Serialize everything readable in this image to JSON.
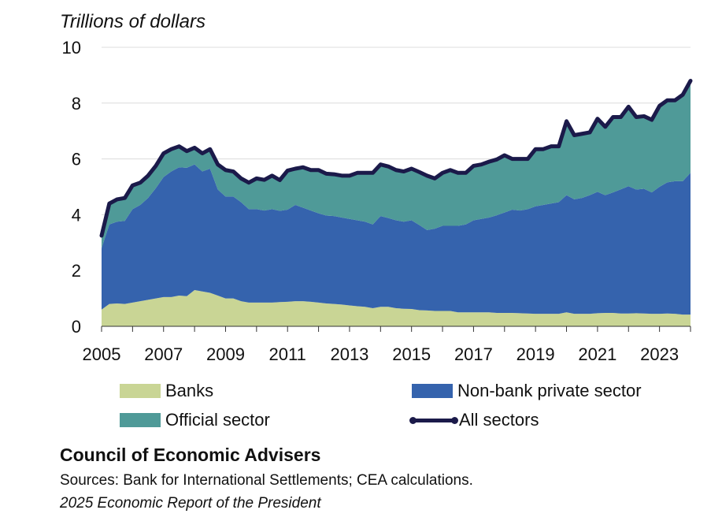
{
  "chart_data": {
    "type": "area",
    "stacked": true,
    "unit_label": "Trillions of dollars",
    "ylim": [
      0,
      10
    ],
    "yticks": [
      "0",
      "2",
      "4",
      "6",
      "8",
      "10"
    ],
    "xlim": [
      2005.0,
      2024.0
    ],
    "xticks": [
      "2005",
      "2007",
      "2009",
      "2011",
      "2013",
      "2015",
      "2017",
      "2019",
      "2021",
      "2023"
    ],
    "x": [
      2005.0,
      2005.25,
      2005.5,
      2005.75,
      2006.0,
      2006.25,
      2006.5,
      2006.75,
      2007.0,
      2007.25,
      2007.5,
      2007.75,
      2008.0,
      2008.25,
      2008.5,
      2008.75,
      2009.0,
      2009.25,
      2009.5,
      2009.75,
      2010.0,
      2010.25,
      2010.5,
      2010.75,
      2011.0,
      2011.25,
      2011.5,
      2011.75,
      2012.0,
      2012.25,
      2012.5,
      2012.75,
      2013.0,
      2013.25,
      2013.5,
      2013.75,
      2014.0,
      2014.25,
      2014.5,
      2014.75,
      2015.0,
      2015.25,
      2015.5,
      2015.75,
      2016.0,
      2016.25,
      2016.5,
      2016.75,
      2017.0,
      2017.25,
      2017.5,
      2017.75,
      2018.0,
      2018.25,
      2018.5,
      2018.75,
      2019.0,
      2019.25,
      2019.5,
      2019.75,
      2020.0,
      2020.25,
      2020.5,
      2020.75,
      2021.0,
      2021.25,
      2021.5,
      2021.75,
      2022.0,
      2022.25,
      2022.5,
      2022.75,
      2023.0,
      2023.25,
      2023.5,
      2023.75,
      2024.0
    ],
    "series": [
      {
        "name": "Banks",
        "kind": "area",
        "color": "#c9d595",
        "values": [
          0.6,
          0.8,
          0.82,
          0.8,
          0.85,
          0.9,
          0.95,
          1.0,
          1.05,
          1.05,
          1.1,
          1.08,
          1.3,
          1.25,
          1.2,
          1.1,
          1.0,
          1.0,
          0.9,
          0.85,
          0.85,
          0.85,
          0.85,
          0.87,
          0.88,
          0.9,
          0.9,
          0.88,
          0.85,
          0.82,
          0.8,
          0.78,
          0.75,
          0.72,
          0.7,
          0.65,
          0.7,
          0.7,
          0.65,
          0.63,
          0.62,
          0.58,
          0.57,
          0.55,
          0.55,
          0.55,
          0.5,
          0.5,
          0.5,
          0.5,
          0.5,
          0.48,
          0.48,
          0.48,
          0.47,
          0.46,
          0.45,
          0.45,
          0.45,
          0.45,
          0.5,
          0.45,
          0.45,
          0.45,
          0.47,
          0.48,
          0.48,
          0.46,
          0.46,
          0.47,
          0.46,
          0.45,
          0.45,
          0.46,
          0.45,
          0.42,
          0.42
        ]
      },
      {
        "name": "Non-bank private sector",
        "kind": "area",
        "color": "#3563ad",
        "values": [
          2.2,
          2.85,
          2.93,
          2.98,
          3.35,
          3.45,
          3.65,
          3.95,
          4.3,
          4.5,
          4.6,
          4.6,
          4.5,
          4.3,
          4.45,
          3.8,
          3.65,
          3.65,
          3.55,
          3.35,
          3.35,
          3.3,
          3.35,
          3.27,
          3.3,
          3.45,
          3.35,
          3.27,
          3.2,
          3.15,
          3.15,
          3.12,
          3.1,
          3.08,
          3.05,
          3.0,
          3.25,
          3.18,
          3.15,
          3.12,
          3.18,
          3.05,
          2.88,
          2.95,
          3.05,
          3.05,
          3.1,
          3.15,
          3.3,
          3.35,
          3.4,
          3.5,
          3.6,
          3.7,
          3.68,
          3.74,
          3.85,
          3.9,
          3.95,
          4.0,
          4.2,
          4.1,
          4.15,
          4.25,
          4.35,
          4.22,
          4.32,
          4.45,
          4.56,
          4.43,
          4.47,
          4.35,
          4.55,
          4.7,
          4.75,
          4.78,
          5.08
        ]
      },
      {
        "name": "Official sector",
        "kind": "area",
        "color": "#4f9a98",
        "values": [
          0.45,
          0.75,
          0.8,
          0.82,
          0.85,
          0.8,
          0.8,
          0.8,
          0.85,
          0.8,
          0.75,
          0.6,
          0.6,
          0.65,
          0.7,
          0.9,
          0.95,
          0.9,
          0.85,
          0.95,
          1.1,
          1.1,
          1.2,
          1.1,
          1.4,
          1.3,
          1.45,
          1.45,
          1.55,
          1.5,
          1.5,
          1.5,
          1.55,
          1.7,
          1.75,
          1.85,
          1.85,
          1.85,
          1.8,
          1.8,
          1.85,
          1.9,
          1.95,
          1.8,
          1.9,
          2.0,
          1.9,
          1.85,
          1.95,
          1.95,
          2.0,
          2.0,
          2.05,
          1.82,
          1.85,
          1.8,
          2.05,
          2.0,
          2.05,
          2.0,
          2.65,
          2.3,
          2.3,
          2.25,
          2.62,
          2.45,
          2.7,
          2.59,
          2.85,
          2.6,
          2.6,
          2.6,
          2.9,
          2.94,
          2.9,
          3.1,
          3.3
        ]
      },
      {
        "name": "All sectors",
        "kind": "line",
        "color": "#1b1a4a"
      }
    ],
    "legend": [
      {
        "label": "Banks",
        "color": "#c9d595",
        "kind": "area"
      },
      {
        "label": "Non-bank private sector",
        "color": "#3563ad",
        "kind": "area"
      },
      {
        "label": "Official sector",
        "color": "#4f9a98",
        "kind": "area"
      },
      {
        "label": "All sectors",
        "color": "#1b1a4a",
        "kind": "line"
      }
    ]
  },
  "footer": {
    "title": "Council of Economic Advisers",
    "sources": "Sources: Bank for International Settlements; CEA calculations.",
    "report": "2025 Economic Report of the President"
  }
}
